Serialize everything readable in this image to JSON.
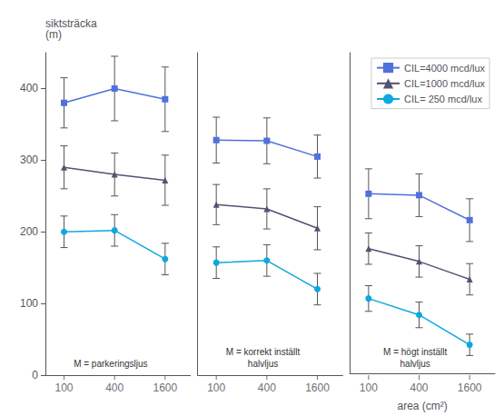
{
  "chart_data": [
    {
      "type": "line",
      "ylabel": "siktsträcka\n(m)",
      "annotation": "M = parkeringsljus",
      "x": [
        100,
        400,
        1600
      ],
      "xlim": [
        60,
        3200
      ],
      "xticks": [
        100,
        400,
        1600
      ],
      "ylim": [
        0,
        450
      ],
      "yticks": [
        0,
        100,
        200,
        300,
        400
      ],
      "log": "x",
      "grid": false,
      "series": [
        {
          "name": "CIL=4000 mcd/lux",
          "marker": "square",
          "values": [
            380,
            400,
            385
          ],
          "yerr": [
            35,
            45,
            45
          ]
        },
        {
          "name": "CIL=1000 mcd/lux",
          "marker": "triangle",
          "values": [
            290,
            280,
            272
          ],
          "yerr": [
            30,
            30,
            35
          ]
        },
        {
          "name": "CIL= 250 mcd/lux",
          "marker": "circle",
          "values": [
            200,
            202,
            162
          ],
          "yerr": [
            22,
            22,
            22
          ]
        }
      ]
    },
    {
      "type": "line",
      "annotation": "M = korrekt inställt\nhalvljus",
      "x": [
        100,
        400,
        1600
      ],
      "xlim": [
        60,
        3200
      ],
      "xticks": [
        100,
        400,
        1600
      ],
      "ylim": [
        0,
        450
      ],
      "yticks": [
        0,
        100,
        200,
        300,
        400
      ],
      "log": "x",
      "grid": false,
      "tick_labels": "x",
      "series": [
        {
          "name": "CIL=4000 mcd/lux",
          "marker": "square",
          "values": [
            328,
            327,
            305
          ],
          "yerr": [
            32,
            32,
            30
          ]
        },
        {
          "name": "CIL=1000 mcd/lux",
          "marker": "triangle",
          "values": [
            238,
            232,
            205
          ],
          "yerr": [
            28,
            28,
            30
          ]
        },
        {
          "name": "CIL= 250 mcd/lux",
          "marker": "circle",
          "values": [
            157,
            160,
            120
          ],
          "yerr": [
            22,
            22,
            22
          ]
        }
      ]
    },
    {
      "type": "line",
      "xlabel": "area (cm²)",
      "annotation": "M = högt inställt\nhalvljus",
      "x": [
        100,
        400,
        1600
      ],
      "xlim": [
        60,
        3200
      ],
      "xticks": [
        100,
        400,
        1600
      ],
      "ylim": [
        0,
        450
      ],
      "yticks": [
        0,
        100,
        200,
        300,
        400
      ],
      "log": "x",
      "grid": false,
      "tick_labels": "x",
      "legend": "upper right",
      "series": [
        {
          "name": "CIL=4000 mcd/lux",
          "marker": "square",
          "values": [
            252,
            250,
            215
          ],
          "yerr": [
            35,
            30,
            30
          ]
        },
        {
          "name": "CIL=1000 mcd/lux",
          "marker": "triangle",
          "values": [
            175,
            157,
            132
          ],
          "yerr": [
            22,
            22,
            22
          ]
        },
        {
          "name": "CIL= 250 mcd/lux",
          "marker": "circle",
          "values": [
            105,
            82,
            40
          ],
          "yerr": [
            18,
            18,
            15
          ]
        }
      ]
    }
  ]
}
